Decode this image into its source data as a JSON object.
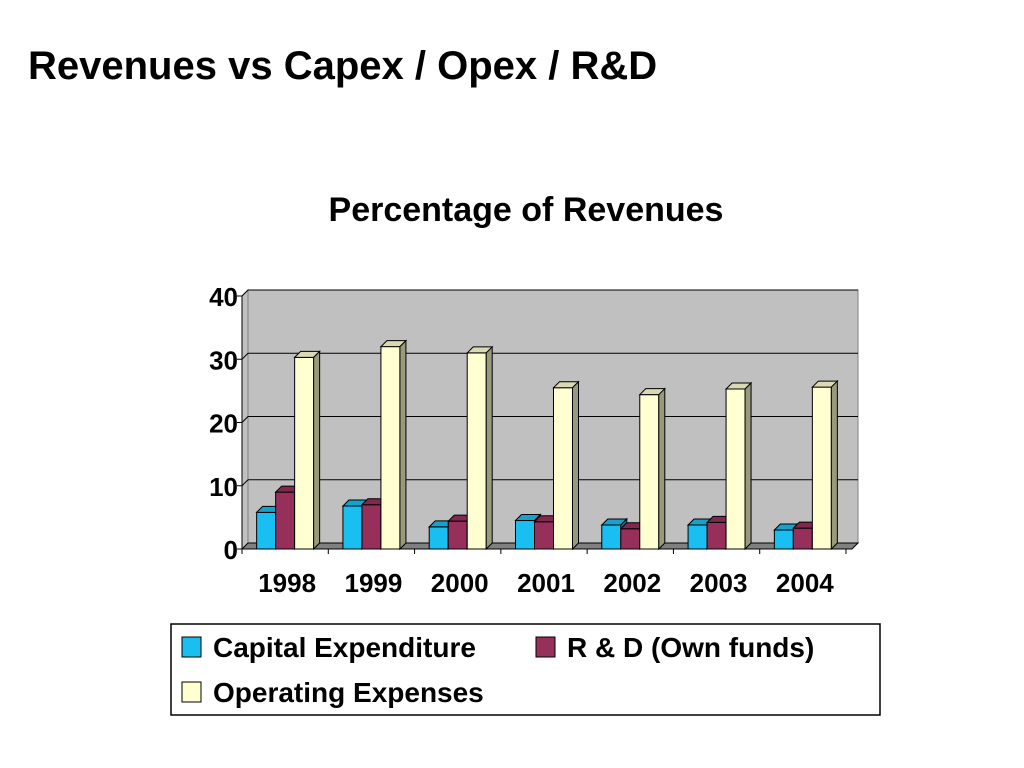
{
  "slide": {
    "title": "Revenues vs Capex / Opex / R&D"
  },
  "chart_data": {
    "type": "bar",
    "title": "Percentage of Revenues",
    "categories": [
      "1998",
      "1999",
      "2000",
      "2001",
      "2002",
      "2003",
      "2004"
    ],
    "series": [
      {
        "name": "Capital Expenditure",
        "values": [
          5.8,
          6.8,
          3.5,
          4.5,
          3.8,
          3.8,
          3.0
        ],
        "color": "#19BFF0"
      },
      {
        "name": "R & D (Own funds)",
        "values": [
          9.0,
          7.0,
          4.4,
          4.3,
          3.2,
          4.2,
          3.3
        ],
        "color": "#962F5A"
      },
      {
        "name": "Operating Expenses",
        "values": [
          30.3,
          32.0,
          31.0,
          25.5,
          24.4,
          25.3,
          25.6
        ],
        "color": "#FFFFD2"
      }
    ],
    "ylim": [
      0,
      40
    ],
    "yticks": [
      "0",
      "10",
      "20",
      "30",
      "40"
    ],
    "grid": true,
    "legend": "bottom",
    "style": {
      "plot_background": "#C0C0C0",
      "floor_color": "#808080"
    }
  }
}
